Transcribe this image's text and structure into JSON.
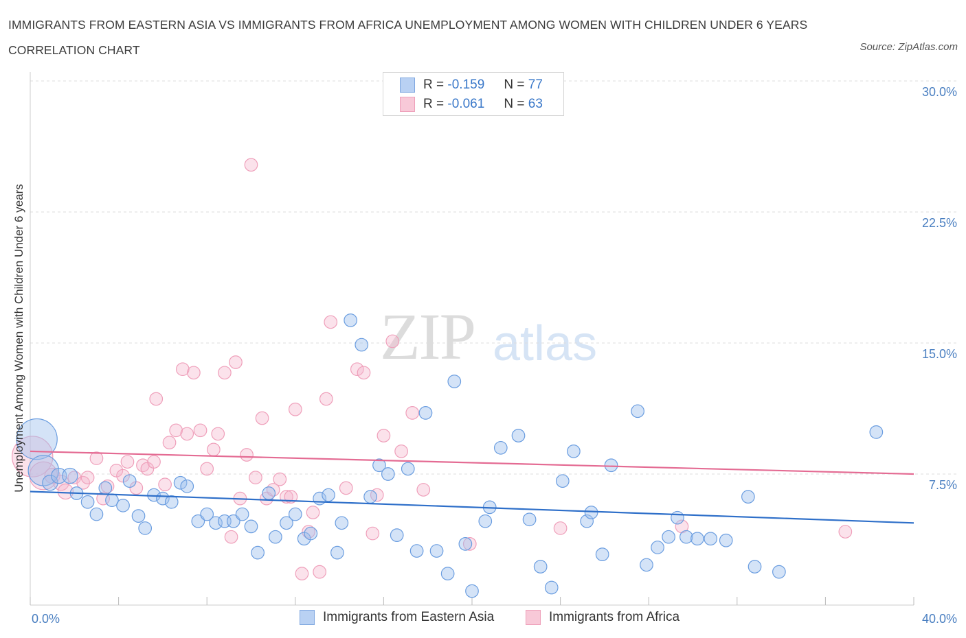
{
  "title": "IMMIGRANTS FROM EASTERN ASIA VS IMMIGRANTS FROM AFRICA UNEMPLOYMENT AMONG WOMEN WITH CHILDREN UNDER 6 YEARS CORRELATION CHART",
  "source": "Source: ZipAtlas.com",
  "watermark": {
    "zip": "ZIP",
    "atlas": "atlas"
  },
  "legend": {
    "rows": [
      {
        "r_label": "R =",
        "r_value": "-0.159",
        "n_label": "N =",
        "n_value": "77"
      },
      {
        "r_label": "R =",
        "r_value": "-0.061",
        "n_label": "N =",
        "n_value": "63"
      }
    ]
  },
  "chart_data": {
    "type": "scatter",
    "title": "IMMIGRANTS FROM EASTERN ASIA VS IMMIGRANTS FROM AFRICA UNEMPLOYMENT AMONG WOMEN WITH CHILDREN UNDER 6 YEARS CORRELATION CHART",
    "xlabel": "",
    "ylabel": "Unemployment Among Women with Children Under 6 years",
    "xlim": [
      0,
      40
    ],
    "ylim": [
      0,
      30
    ],
    "x_tick_labels": [
      "0.0%",
      "40.0%"
    ],
    "y_ticks": [
      7.5,
      15.0,
      22.5,
      30.0
    ],
    "y_tick_labels": [
      "7.5%",
      "15.0%",
      "22.5%",
      "30.0%"
    ],
    "grid": true,
    "legend_position": "top-center",
    "colors": {
      "eastern_asia": "#6a9de0",
      "africa": "#f09ab5",
      "eastern_asia_line": "#2e6fc9",
      "africa_line": "#e46b93"
    },
    "series": [
      {
        "name": "Immigrants from Eastern Asia",
        "R": -0.159,
        "N": 77,
        "trend": {
          "x": [
            0,
            40
          ],
          "y": [
            6.5,
            4.7
          ]
        },
        "points": [
          [
            0.3,
            9.5,
            1.6
          ],
          [
            0.6,
            7.7,
            1.2
          ],
          [
            0.9,
            7.0,
            0.6
          ],
          [
            1.3,
            7.4,
            0.6
          ],
          [
            1.8,
            7.4,
            0.6
          ],
          [
            2.1,
            6.4,
            0.5
          ],
          [
            2.6,
            5.9,
            0.5
          ],
          [
            3.0,
            5.2,
            0.5
          ],
          [
            3.4,
            6.7,
            0.5
          ],
          [
            3.7,
            6.0,
            0.5
          ],
          [
            4.2,
            5.7,
            0.5
          ],
          [
            4.5,
            7.1,
            0.5
          ],
          [
            4.9,
            5.1,
            0.5
          ],
          [
            5.2,
            4.4,
            0.5
          ],
          [
            5.6,
            6.3,
            0.5
          ],
          [
            6.0,
            6.1,
            0.5
          ],
          [
            6.4,
            5.9,
            0.5
          ],
          [
            6.8,
            7.0,
            0.5
          ],
          [
            7.1,
            6.8,
            0.5
          ],
          [
            7.6,
            4.8,
            0.5
          ],
          [
            8.0,
            5.2,
            0.5
          ],
          [
            8.4,
            4.7,
            0.5
          ],
          [
            8.8,
            4.8,
            0.5
          ],
          [
            9.2,
            4.8,
            0.5
          ],
          [
            9.6,
            5.2,
            0.5
          ],
          [
            10.0,
            4.5,
            0.5
          ],
          [
            10.3,
            3.0,
            0.5
          ],
          [
            10.8,
            6.4,
            0.5
          ],
          [
            11.1,
            3.9,
            0.5
          ],
          [
            11.6,
            4.7,
            0.5
          ],
          [
            12.0,
            5.2,
            0.5
          ],
          [
            12.4,
            3.8,
            0.5
          ],
          [
            12.7,
            4.1,
            0.5
          ],
          [
            13.1,
            6.1,
            0.5
          ],
          [
            13.5,
            6.3,
            0.5
          ],
          [
            13.9,
            3.0,
            0.5
          ],
          [
            14.1,
            4.7,
            0.5
          ],
          [
            14.5,
            16.3,
            0.5
          ],
          [
            15.0,
            14.9,
            0.5
          ],
          [
            15.4,
            6.2,
            0.5
          ],
          [
            15.8,
            8.0,
            0.5
          ],
          [
            16.2,
            7.5,
            0.5
          ],
          [
            16.6,
            4.0,
            0.5
          ],
          [
            17.1,
            7.8,
            0.5
          ],
          [
            17.5,
            3.1,
            0.5
          ],
          [
            17.9,
            11.0,
            0.5
          ],
          [
            18.4,
            3.1,
            0.5
          ],
          [
            18.9,
            1.8,
            0.5
          ],
          [
            19.2,
            12.8,
            0.5
          ],
          [
            19.7,
            3.5,
            0.5
          ],
          [
            20.0,
            0.8,
            0.5
          ],
          [
            20.6,
            4.8,
            0.5
          ],
          [
            20.8,
            5.6,
            0.5
          ],
          [
            21.3,
            9.0,
            0.5
          ],
          [
            22.1,
            9.7,
            0.5
          ],
          [
            22.6,
            4.9,
            0.5
          ],
          [
            23.1,
            2.2,
            0.5
          ],
          [
            23.6,
            1.0,
            0.5
          ],
          [
            24.1,
            7.1,
            0.5
          ],
          [
            24.6,
            8.8,
            0.5
          ],
          [
            25.2,
            4.8,
            0.5
          ],
          [
            25.4,
            5.3,
            0.5
          ],
          [
            25.9,
            2.9,
            0.5
          ],
          [
            26.3,
            8.0,
            0.5
          ],
          [
            27.5,
            11.1,
            0.5
          ],
          [
            27.9,
            2.3,
            0.5
          ],
          [
            28.4,
            3.3,
            0.5
          ],
          [
            28.9,
            3.9,
            0.5
          ],
          [
            29.3,
            5.0,
            0.5
          ],
          [
            29.7,
            3.9,
            0.5
          ],
          [
            30.2,
            3.8,
            0.5
          ],
          [
            30.8,
            3.8,
            0.5
          ],
          [
            31.5,
            3.7,
            0.5
          ],
          [
            32.5,
            6.2,
            0.5
          ],
          [
            32.8,
            2.2,
            0.5
          ],
          [
            33.9,
            1.9,
            0.5
          ],
          [
            38.3,
            9.9,
            0.5
          ]
        ]
      },
      {
        "name": "Immigrants from Africa",
        "R": -0.061,
        "N": 63,
        "trend": {
          "x": [
            0,
            40
          ],
          "y": [
            8.8,
            7.5
          ]
        },
        "points": [
          [
            0.1,
            8.5,
            1.6
          ],
          [
            0.6,
            7.4,
            1.1
          ],
          [
            1.0,
            7.4,
            0.6
          ],
          [
            1.4,
            7.0,
            0.6
          ],
          [
            1.6,
            6.5,
            0.6
          ],
          [
            2.0,
            7.3,
            0.5
          ],
          [
            2.4,
            7.0,
            0.5
          ],
          [
            2.6,
            7.3,
            0.5
          ],
          [
            3.0,
            8.4,
            0.5
          ],
          [
            3.3,
            6.1,
            0.5
          ],
          [
            3.5,
            6.8,
            0.5
          ],
          [
            3.9,
            7.7,
            0.5
          ],
          [
            4.2,
            7.4,
            0.5
          ],
          [
            4.4,
            8.2,
            0.5
          ],
          [
            4.8,
            6.7,
            0.5
          ],
          [
            5.1,
            8.0,
            0.5
          ],
          [
            5.3,
            7.8,
            0.5
          ],
          [
            5.6,
            8.2,
            0.5
          ],
          [
            5.7,
            11.8,
            0.5
          ],
          [
            6.1,
            6.9,
            0.5
          ],
          [
            6.3,
            9.3,
            0.5
          ],
          [
            6.6,
            10.0,
            0.5
          ],
          [
            6.9,
            13.5,
            0.5
          ],
          [
            7.1,
            9.8,
            0.5
          ],
          [
            7.4,
            13.3,
            0.5
          ],
          [
            7.7,
            10.0,
            0.5
          ],
          [
            8.0,
            7.8,
            0.5
          ],
          [
            8.3,
            8.9,
            0.5
          ],
          [
            8.5,
            9.8,
            0.5
          ],
          [
            8.8,
            13.3,
            0.5
          ],
          [
            9.1,
            3.9,
            0.5
          ],
          [
            9.3,
            13.9,
            0.5
          ],
          [
            9.5,
            6.1,
            0.5
          ],
          [
            9.8,
            8.6,
            0.5
          ],
          [
            10.0,
            25.2,
            0.5
          ],
          [
            10.2,
            7.3,
            0.5
          ],
          [
            10.5,
            10.7,
            0.5
          ],
          [
            10.7,
            6.1,
            0.5
          ],
          [
            11.0,
            6.6,
            0.5
          ],
          [
            11.3,
            7.2,
            0.5
          ],
          [
            11.6,
            6.2,
            0.5
          ],
          [
            11.8,
            6.2,
            0.5
          ],
          [
            12.0,
            11.2,
            0.5
          ],
          [
            12.3,
            1.8,
            0.5
          ],
          [
            12.6,
            4.2,
            0.5
          ],
          [
            12.8,
            5.3,
            0.5
          ],
          [
            13.1,
            1.9,
            0.5
          ],
          [
            13.4,
            11.8,
            0.5
          ],
          [
            13.6,
            16.2,
            0.5
          ],
          [
            14.3,
            6.7,
            0.5
          ],
          [
            14.8,
            13.5,
            0.5
          ],
          [
            15.1,
            13.3,
            0.5
          ],
          [
            15.5,
            4.1,
            0.5
          ],
          [
            15.7,
            6.3,
            0.5
          ],
          [
            16.0,
            9.7,
            0.5
          ],
          [
            16.4,
            15.1,
            0.5
          ],
          [
            16.8,
            8.8,
            0.5
          ],
          [
            17.3,
            11.0,
            0.5
          ],
          [
            17.8,
            6.6,
            0.5
          ],
          [
            19.9,
            3.5,
            0.5
          ],
          [
            24.0,
            4.4,
            0.5
          ],
          [
            29.5,
            4.5,
            0.5
          ],
          [
            36.9,
            4.2,
            0.5
          ]
        ]
      }
    ]
  },
  "bottom_legend": [
    {
      "label": "Immigrants from Eastern Asia"
    },
    {
      "label": "Immigrants from Africa"
    }
  ]
}
